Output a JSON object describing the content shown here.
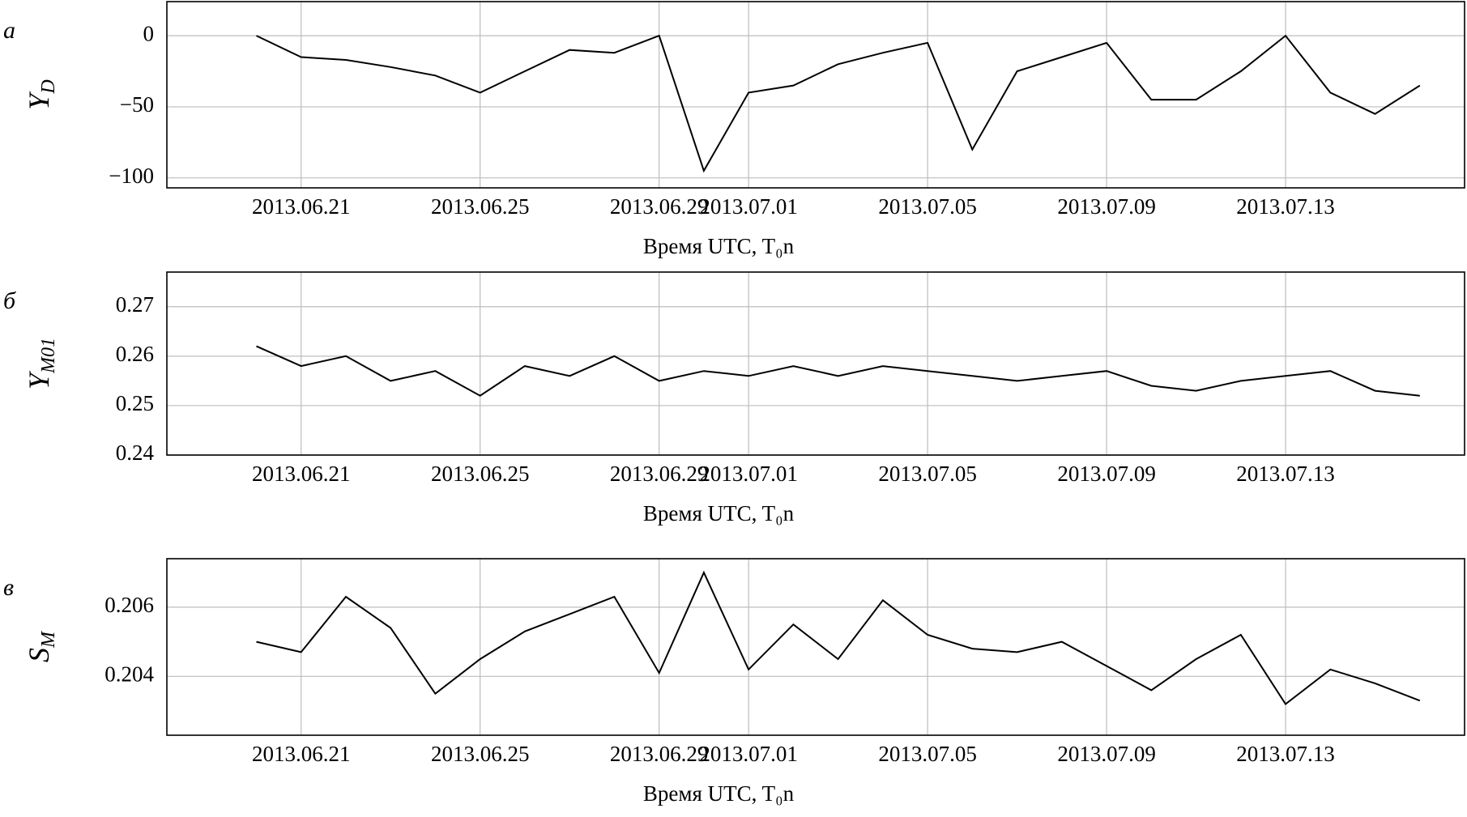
{
  "chart_data": [
    {
      "type": "line",
      "panel": "а",
      "ylabel": {
        "main": "Y",
        "sub": "D"
      },
      "xlabel": "Время UTC, T₀n",
      "color": "#000000",
      "grid": true,
      "x": [
        "2013.06.20",
        "2013.06.21",
        "2013.06.22",
        "2013.06.23",
        "2013.06.24",
        "2013.06.25",
        "2013.06.26",
        "2013.06.27",
        "2013.06.28",
        "2013.06.29",
        "2013.06.30",
        "2013.07.01",
        "2013.07.02",
        "2013.07.03",
        "2013.07.04",
        "2013.07.05",
        "2013.07.06",
        "2013.07.07",
        "2013.07.08",
        "2013.07.09",
        "2013.07.10",
        "2013.07.11",
        "2013.07.12",
        "2013.07.13",
        "2013.07.14",
        "2013.07.15",
        "2013.07.16"
      ],
      "values": [
        0,
        -15,
        -17,
        -22,
        -28,
        -40,
        -25,
        -10,
        -12,
        0,
        -95,
        -40,
        -35,
        -20,
        -12,
        -5,
        -80,
        -25,
        -15,
        -5,
        -45,
        -45,
        -25,
        0,
        -40,
        -55,
        -35
      ],
      "xlim": [
        "2013.06.18",
        "2013.07.17"
      ],
      "xticks": [
        "2013.06.21",
        "2013.06.25",
        "2013.06.29",
        "2013.07.01",
        "2013.07.05",
        "2013.07.09",
        "2013.07.13"
      ],
      "ylim": [
        -107,
        24
      ],
      "yticks": [
        0,
        {
          "value": -50,
          "label": "−50"
        },
        {
          "value": -100,
          "label": "−100"
        }
      ]
    },
    {
      "type": "line",
      "panel": "б",
      "ylabel": {
        "main": "Y",
        "sub": "M01"
      },
      "xlabel": "Время UTC, T₀n",
      "color": "#000000",
      "grid": true,
      "x": [
        "2013.06.20",
        "2013.06.21",
        "2013.06.22",
        "2013.06.23",
        "2013.06.24",
        "2013.06.25",
        "2013.06.26",
        "2013.06.27",
        "2013.06.28",
        "2013.06.29",
        "2013.06.30",
        "2013.07.01",
        "2013.07.02",
        "2013.07.03",
        "2013.07.04",
        "2013.07.05",
        "2013.07.06",
        "2013.07.07",
        "2013.07.08",
        "2013.07.09",
        "2013.07.10",
        "2013.07.11",
        "2013.07.12",
        "2013.07.13",
        "2013.07.14",
        "2013.07.15",
        "2013.07.16"
      ],
      "values": [
        0.262,
        0.258,
        0.26,
        0.255,
        0.257,
        0.252,
        0.258,
        0.256,
        0.26,
        0.255,
        0.257,
        0.256,
        0.258,
        0.256,
        0.258,
        0.257,
        0.256,
        0.255,
        0.256,
        0.257,
        0.254,
        0.253,
        0.255,
        0.256,
        0.257,
        0.253,
        0.252
      ],
      "xlim": [
        "2013.06.18",
        "2013.07.17"
      ],
      "xticks": [
        "2013.06.21",
        "2013.06.25",
        "2013.06.29",
        "2013.07.01",
        "2013.07.05",
        "2013.07.09",
        "2013.07.13"
      ],
      "ylim": [
        0.24,
        0.277
      ],
      "yticks": [
        0.27,
        0.26,
        0.25,
        0.24
      ]
    },
    {
      "type": "line",
      "panel": "в",
      "ylabel": {
        "main": "S",
        "sub": "M"
      },
      "xlabel": "Время UTC, T₀n",
      "color": "#000000",
      "grid": true,
      "x": [
        "2013.06.20",
        "2013.06.21",
        "2013.06.22",
        "2013.06.23",
        "2013.06.24",
        "2013.06.25",
        "2013.06.26",
        "2013.06.27",
        "2013.06.28",
        "2013.06.29",
        "2013.06.30",
        "2013.07.01",
        "2013.07.02",
        "2013.07.03",
        "2013.07.04",
        "2013.07.05",
        "2013.07.06",
        "2013.07.07",
        "2013.07.08",
        "2013.07.09",
        "2013.07.10",
        "2013.07.11",
        "2013.07.12",
        "2013.07.13",
        "2013.07.14",
        "2013.07.15",
        "2013.07.16"
      ],
      "values": [
        0.205,
        0.2047,
        0.2063,
        0.2054,
        0.2035,
        0.2045,
        0.2053,
        0.2058,
        0.2063,
        0.2041,
        0.207,
        0.2042,
        0.2055,
        0.2045,
        0.2062,
        0.2052,
        0.2048,
        0.2047,
        0.205,
        0.2043,
        0.2036,
        0.2045,
        0.2052,
        0.2032,
        0.2042,
        0.2038,
        0.2033
      ],
      "xlim": [
        "2013.06.18",
        "2013.07.17"
      ],
      "xticks": [
        "2013.06.21",
        "2013.06.25",
        "2013.06.29",
        "2013.07.01",
        "2013.07.05",
        "2013.07.09",
        "2013.07.13"
      ],
      "ylim": [
        0.2023,
        0.2074
      ],
      "yticks": [
        0.206,
        0.204
      ]
    }
  ]
}
